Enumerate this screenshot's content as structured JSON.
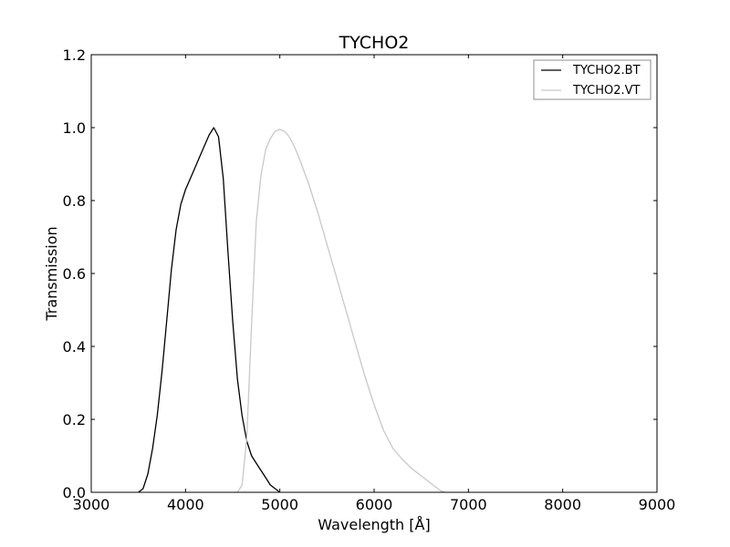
{
  "chart_data": {
    "type": "line",
    "title": "TYCHO2",
    "xlabel": "Wavelength [Å]",
    "ylabel": "Transmission",
    "xlim": [
      3000,
      9000
    ],
    "ylim": [
      0,
      1.2
    ],
    "xticks": [
      3000,
      4000,
      5000,
      6000,
      7000,
      8000,
      9000
    ],
    "yticks": [
      0.0,
      0.2,
      0.4,
      0.6,
      0.8,
      1.0,
      1.2
    ],
    "xtick_labels": [
      "3000",
      "4000",
      "5000",
      "6000",
      "7000",
      "8000",
      "9000"
    ],
    "ytick_labels": [
      "0.0",
      "0.2",
      "0.4",
      "0.6",
      "0.8",
      "1.0",
      "1.2"
    ],
    "grid": false,
    "legend_position": "top-right",
    "series": [
      {
        "name": "TYCHO2.BT",
        "color": "#000000",
        "x": [
          3500,
          3550,
          3600,
          3650,
          3700,
          3750,
          3800,
          3850,
          3900,
          3950,
          4000,
          4050,
          4100,
          4150,
          4200,
          4250,
          4300,
          4350,
          4400,
          4450,
          4500,
          4550,
          4600,
          4650,
          4700,
          4750,
          4800,
          4850,
          4900,
          4950,
          5000
        ],
        "y": [
          0.0,
          0.01,
          0.05,
          0.12,
          0.21,
          0.33,
          0.47,
          0.61,
          0.72,
          0.79,
          0.83,
          0.86,
          0.89,
          0.92,
          0.95,
          0.98,
          1.0,
          0.975,
          0.86,
          0.66,
          0.47,
          0.31,
          0.21,
          0.14,
          0.1,
          0.08,
          0.06,
          0.04,
          0.02,
          0.01,
          0.0
        ]
      },
      {
        "name": "TYCHO2.VT",
        "color": "#c8c8c8",
        "x": [
          4550,
          4600,
          4650,
          4700,
          4750,
          4800,
          4850,
          4900,
          4950,
          5000,
          5050,
          5100,
          5150,
          5200,
          5300,
          5400,
          5500,
          5600,
          5700,
          5800,
          5900,
          6000,
          6100,
          6200,
          6300,
          6400,
          6500,
          6600,
          6700,
          6750
        ],
        "y": [
          0.0,
          0.02,
          0.15,
          0.46,
          0.74,
          0.87,
          0.94,
          0.97,
          0.99,
          0.995,
          0.99,
          0.975,
          0.95,
          0.92,
          0.85,
          0.77,
          0.68,
          0.59,
          0.5,
          0.41,
          0.32,
          0.24,
          0.17,
          0.12,
          0.09,
          0.065,
          0.045,
          0.025,
          0.005,
          0.0
        ]
      }
    ]
  }
}
